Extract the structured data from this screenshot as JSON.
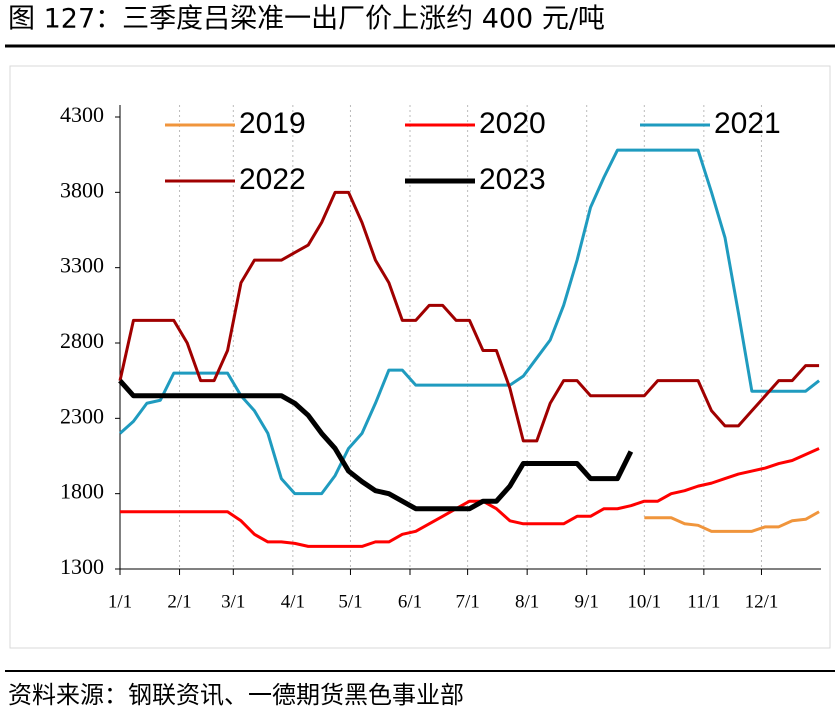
{
  "header": {
    "title": "图 127：三季度吕梁准一出厂价上涨约 400 元/吨"
  },
  "chart_data": {
    "type": "line",
    "x": [
      0,
      7,
      14,
      21,
      28,
      35,
      42,
      49,
      56,
      63,
      70,
      77,
      84,
      91,
      98,
      105,
      112,
      119,
      126,
      133,
      140,
      147,
      154,
      161,
      168,
      175,
      182,
      189,
      196,
      203,
      210,
      217,
      224,
      231,
      238,
      245,
      252,
      259,
      266,
      273,
      280,
      287,
      294,
      301,
      308,
      315,
      322,
      329,
      336,
      343,
      350,
      357,
      364
    ],
    "xlim": [
      0,
      365
    ],
    "xticks": [
      {
        "value": 0,
        "label": "1/1"
      },
      {
        "value": 31,
        "label": "2/1"
      },
      {
        "value": 59,
        "label": "3/1"
      },
      {
        "value": 90,
        "label": "4/1"
      },
      {
        "value": 120,
        "label": "5/1"
      },
      {
        "value": 151,
        "label": "6/1"
      },
      {
        "value": 181,
        "label": "7/1"
      },
      {
        "value": 212,
        "label": "8/1"
      },
      {
        "value": 243,
        "label": "9/1"
      },
      {
        "value": 273,
        "label": "10/1"
      },
      {
        "value": 304,
        "label": "11/1"
      },
      {
        "value": 334,
        "label": "12/1"
      }
    ],
    "ylim": [
      1300,
      4300
    ],
    "yticks": [
      1300,
      1800,
      2300,
      2800,
      3300,
      3800,
      4300
    ],
    "grid": true,
    "series": [
      {
        "name": "2019",
        "color": "#f0953c",
        "width": 3,
        "values": [
          null,
          null,
          null,
          null,
          null,
          null,
          null,
          null,
          null,
          null,
          null,
          null,
          null,
          null,
          null,
          null,
          null,
          null,
          null,
          null,
          null,
          null,
          null,
          null,
          null,
          null,
          null,
          null,
          null,
          null,
          null,
          null,
          null,
          null,
          null,
          null,
          null,
          null,
          null,
          1640,
          1640,
          1640,
          1600,
          1590,
          1550,
          1550,
          1550,
          1550,
          1580,
          1580,
          1620,
          1630,
          1680
        ]
      },
      {
        "name": "2020",
        "color": "#ff0000",
        "width": 3,
        "values": [
          1680,
          1680,
          1680,
          1680,
          1680,
          1680,
          1680,
          1680,
          1680,
          1620,
          1530,
          1480,
          1480,
          1470,
          1450,
          1450,
          1450,
          1450,
          1450,
          1480,
          1480,
          1530,
          1550,
          1600,
          1650,
          1700,
          1750,
          1750,
          1700,
          1620,
          1600,
          1600,
          1600,
          1600,
          1650,
          1650,
          1700,
          1700,
          1720,
          1750,
          1750,
          1800,
          1820,
          1850,
          1870,
          1900,
          1930,
          1950,
          1970,
          2000,
          2020,
          2060,
          2100
        ]
      },
      {
        "name": "2021",
        "color": "#1f9bbf",
        "width": 3,
        "values": [
          2200,
          2280,
          2400,
          2420,
          2600,
          2600,
          2600,
          2600,
          2600,
          2450,
          2350,
          2200,
          1900,
          1800,
          1800,
          1800,
          1920,
          2100,
          2200,
          2400,
          2620,
          2620,
          2520,
          2520,
          2520,
          2520,
          2520,
          2520,
          2520,
          2520,
          2580,
          2700,
          2820,
          3050,
          3350,
          3700,
          3900,
          4080,
          4080,
          4080,
          4080,
          4080,
          4080,
          4080,
          3800,
          3500,
          3000,
          2480,
          2480,
          2480,
          2480,
          2480,
          2550
        ]
      },
      {
        "name": "2022",
        "color": "#a00000",
        "width": 3,
        "values": [
          2550,
          2950,
          2950,
          2950,
          2950,
          2800,
          2550,
          2550,
          2750,
          3200,
          3350,
          3350,
          3350,
          3400,
          3450,
          3600,
          3800,
          3800,
          3600,
          3350,
          3200,
          2950,
          2950,
          3050,
          3050,
          2950,
          2950,
          2750,
          2750,
          2500,
          2150,
          2150,
          2400,
          2550,
          2550,
          2450,
          2450,
          2450,
          2450,
          2450,
          2550,
          2550,
          2550,
          2550,
          2350,
          2250,
          2250,
          2350,
          2450,
          2550,
          2550,
          2650,
          2650
        ]
      },
      {
        "name": "2023",
        "color": "#000000",
        "width": 5,
        "values": [
          2550,
          2450,
          2450,
          2450,
          2450,
          2450,
          2450,
          2450,
          2450,
          2450,
          2450,
          2450,
          2450,
          2400,
          2320,
          2200,
          2100,
          1950,
          1880,
          1820,
          1800,
          1750,
          1700,
          1700,
          1700,
          1700,
          1700,
          1750,
          1750,
          1850,
          2000,
          2000,
          2000,
          2000,
          2000,
          1900,
          1900,
          1900,
          2080,
          null,
          null,
          null,
          null,
          null,
          null,
          null,
          null,
          null,
          null,
          null,
          null,
          null,
          null
        ]
      }
    ]
  },
  "footer": {
    "source": "资料来源：钢联资讯、一德期货黑色事业部"
  }
}
